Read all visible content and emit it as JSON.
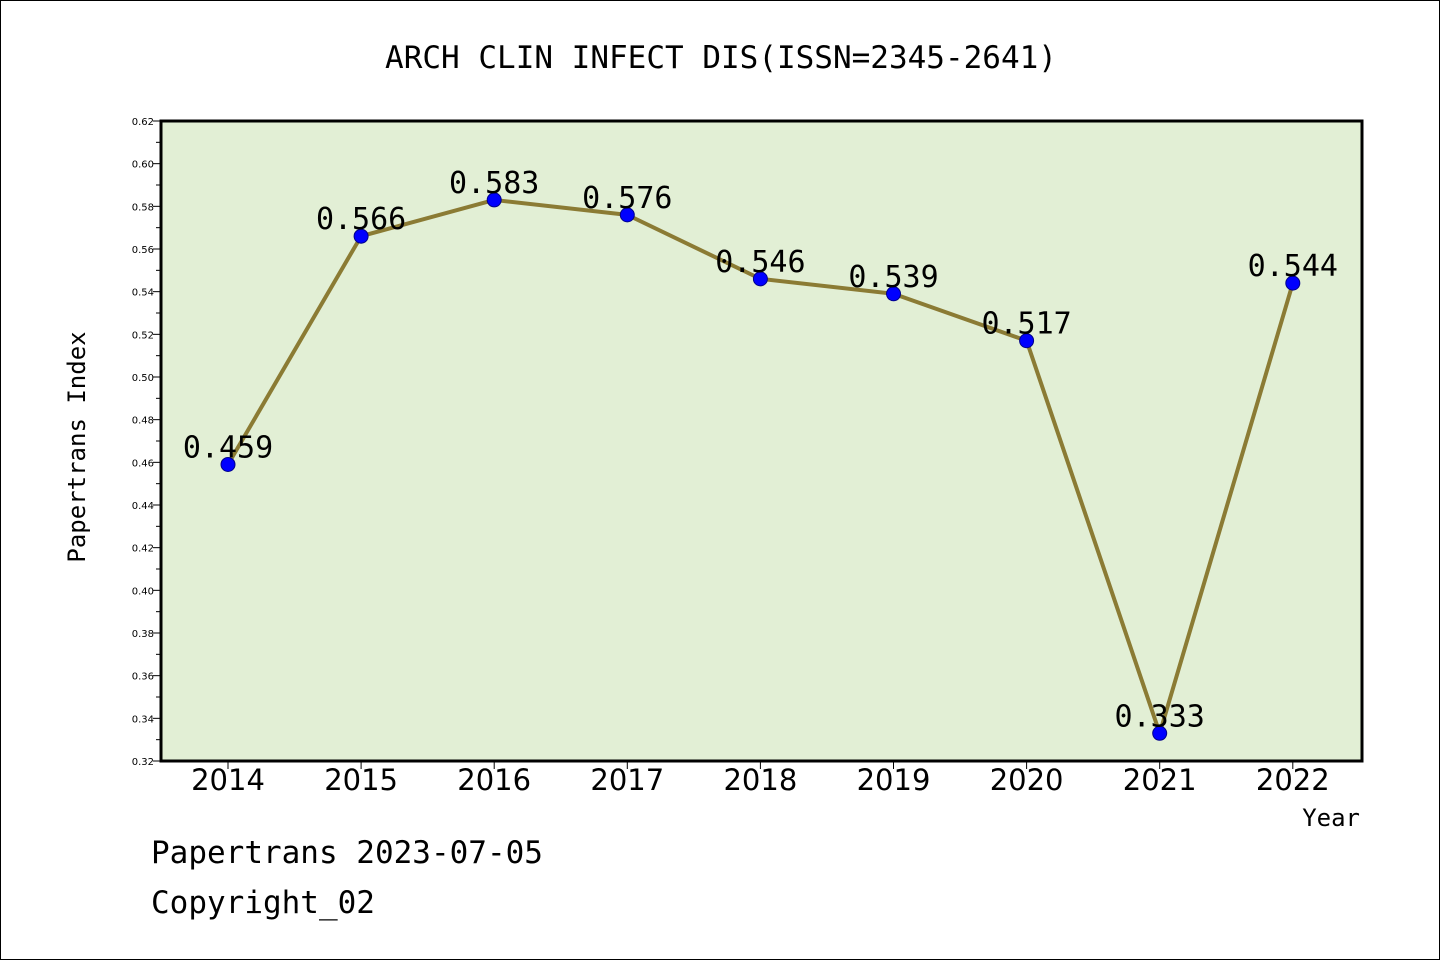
{
  "chart_data": {
    "type": "line",
    "title": "ARCH CLIN INFECT DIS(ISSN=2345-2641)",
    "xlabel": "Year",
    "ylabel": "Papertrans Index",
    "categories": [
      "2014",
      "2015",
      "2016",
      "2017",
      "2018",
      "2019",
      "2020",
      "2021",
      "2022"
    ],
    "series": [
      {
        "values": [
          0.459,
          0.566,
          0.583,
          0.576,
          0.546,
          0.539,
          0.517,
          0.333,
          0.544
        ],
        "labels": [
          "0.459",
          "0.566",
          "0.583",
          "0.576",
          "0.546",
          "0.539",
          "0.517",
          "0.333",
          "0.544"
        ]
      }
    ],
    "ylim": [
      0.32,
      0.62
    ],
    "yticks": [
      "0.32",
      "0.34",
      "0.36",
      "0.38",
      "0.40",
      "0.42",
      "0.44",
      "0.46",
      "0.48",
      "0.50",
      "0.52",
      "0.54",
      "0.56",
      "0.58",
      "0.60",
      "0.62"
    ],
    "grid": false,
    "colors": {
      "plot_background": "#e2efd5",
      "line": "#8b7b34",
      "marker": "#0000ff"
    }
  },
  "footer": {
    "line1": "Papertrans 2023-07-05",
    "line2": "Copyright_02"
  }
}
